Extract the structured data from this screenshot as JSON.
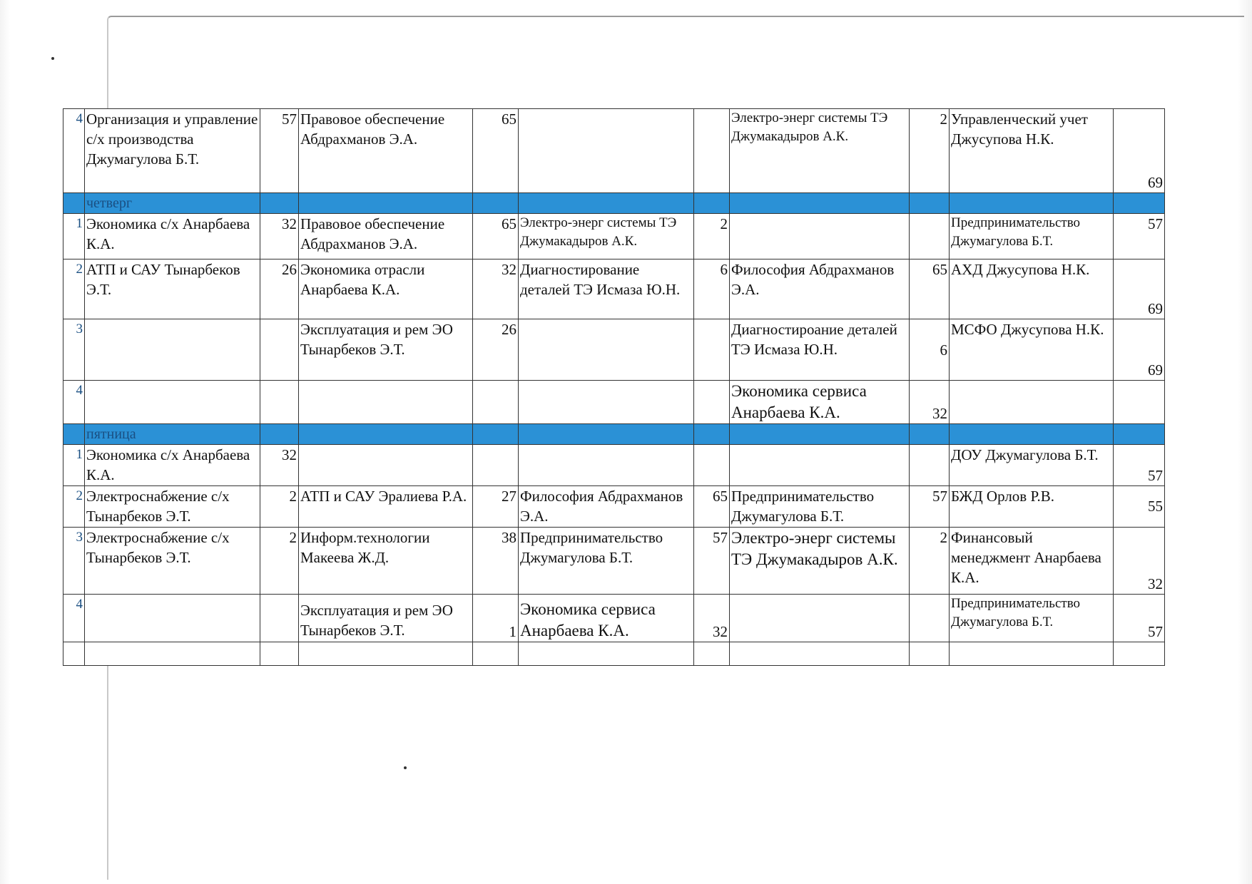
{
  "days": [
    {
      "label": "четверг"
    },
    {
      "label": "пятница"
    }
  ],
  "rows": {
    "pre_4": {
      "num": "4",
      "c1_text": "Организация и управление с/х производства Джумагулова Б.Т.",
      "c1_room": "57",
      "c2_text": "Правовое обеспечение Абдрахманов Э.А.",
      "c2_room": "65",
      "c4_text": "Электро-энерг системы ТЭ  Джумакадыров А.К.",
      "c4_room": "2",
      "c5_text": "Управленческий учет Джусупова Н.К.",
      "c5_room": "69"
    },
    "thu_1": {
      "num": "1",
      "c1_text": "Экономика с/х Анарбаева К.А.",
      "c1_room": "32",
      "c2_text": "Правовое обеспечение Абдрахманов Э.А.",
      "c2_room": "65",
      "c3_text": "Электро-энерг системы ТЭ  Джумакадыров А.К.",
      "c3_room": "2",
      "c5_text": "Предпринимательство Джумагулова Б.Т.",
      "c5_room": "57"
    },
    "thu_2": {
      "num": "2",
      "c1_text": "АТП и САУ Тынарбеков Э.Т.",
      "c1_room": "26",
      "c2_text": "Экономика отрасли Анарбаева К.А.",
      "c2_room": "32",
      "c3_text": "Диагностирование деталей ТЭ Исмаза Ю.Н.",
      "c3_room": "6",
      "c4_text": "Философия Абдрахманов Э.А.",
      "c4_room": "65",
      "c5_text": "АХД Джусупова Н.К.",
      "c5_room": "69"
    },
    "thu_3": {
      "num": "3",
      "c2_text": "Эксплуатация и рем ЭО Тынарбеков Э.Т.",
      "c2_room": "26",
      "c4_text": "Диагностироание деталей ТЭ Исмаза Ю.Н.",
      "c4_room": "6",
      "c5_text": "МСФО Джусупова Н.К.",
      "c5_room": "69"
    },
    "thu_4": {
      "num": "4",
      "c4_text": "Экономика сервиса Анарбаева К.А.",
      "c4_room": "32"
    },
    "fri_1": {
      "num": "1",
      "c1_text": "Экономика с/х Анарбаева К.А.",
      "c1_room": "32",
      "c5_text": "ДОУ Джумагулова Б.Т.",
      "c5_room": "57"
    },
    "fri_2": {
      "num": "2",
      "c1_text": "Электроснабжение с/х Тынарбеков Э.Т.",
      "c1_room": "2",
      "c2_text": "АТП и САУ Эралиева Р.А.",
      "c2_room": "27",
      "c3_text": "Философия Абдрахманов Э.А.",
      "c3_room": "65",
      "c4_text": "Предпринимательство Джумагулова Б.Т.",
      "c4_room": "57",
      "c5_text": " БЖД Орлов Р.В.",
      "c5_room": "55"
    },
    "fri_3": {
      "num": "3",
      "c1_text": "Электроснабжение с/х Тынарбеков Э.Т.",
      "c1_room": "2",
      "c2_text": "Информ.технологии Макеева Ж.Д.",
      "c2_room": "38",
      "c3_text": "Предпринимательство Джумагулова Б.Т.",
      "c3_room": "57",
      "c4_text": "Электро-энерг системы ТЭ Джумакадыров А.К.",
      "c4_room": "2",
      "c5_text": "Финансовый менеджмент Анарбаева К.А.",
      "c5_room": "32"
    },
    "fri_4": {
      "num": "4",
      "c2_text": "Эксплуатация и рем ЭО Тынарбеков Э.Т.",
      "c2_room": "1",
      "c3_text": "Экономика сервиса Анарбаева К.А.",
      "c3_room": "32",
      "c5_text": "Предпринимательство Джумагулова Б.Т.",
      "c5_room": "57"
    }
  },
  "colors": {
    "day_band": "#2b91d6",
    "empty_slot": "#e86e6e"
  }
}
